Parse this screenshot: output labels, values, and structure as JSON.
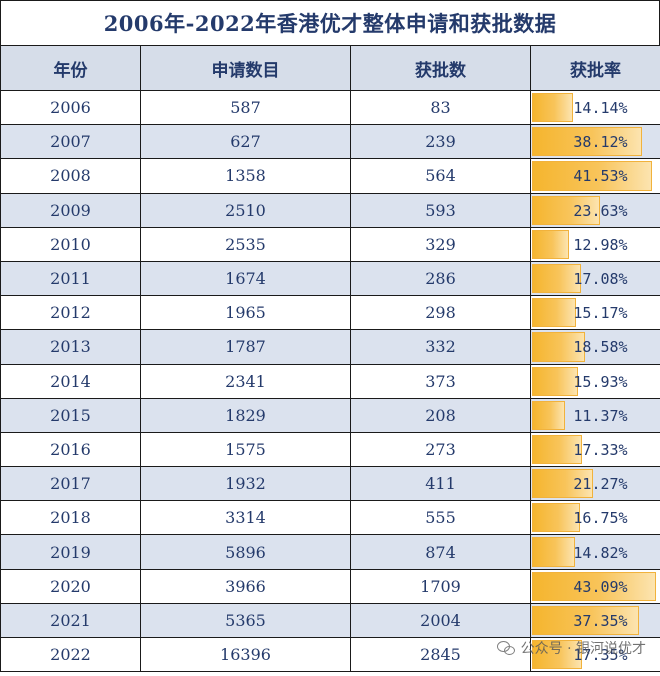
{
  "title": "2006年-2022年香港优才整体申请和获批数据",
  "columns": [
    "年份",
    "申请数目",
    "获批数",
    "获批率"
  ],
  "rows": [
    {
      "year": "2006",
      "applications": "587",
      "approved": "83",
      "rate": "14.14%",
      "rate_value": 14.14
    },
    {
      "year": "2007",
      "applications": "627",
      "approved": "239",
      "rate": "38.12%",
      "rate_value": 38.12
    },
    {
      "year": "2008",
      "applications": "1358",
      "approved": "564",
      "rate": "41.53%",
      "rate_value": 41.53
    },
    {
      "year": "2009",
      "applications": "2510",
      "approved": "593",
      "rate": "23.63%",
      "rate_value": 23.63
    },
    {
      "year": "2010",
      "applications": "2535",
      "approved": "329",
      "rate": "12.98%",
      "rate_value": 12.98
    },
    {
      "year": "2011",
      "applications": "1674",
      "approved": "286",
      "rate": "17.08%",
      "rate_value": 17.08
    },
    {
      "year": "2012",
      "applications": "1965",
      "approved": "298",
      "rate": "15.17%",
      "rate_value": 15.17
    },
    {
      "year": "2013",
      "applications": "1787",
      "approved": "332",
      "rate": "18.58%",
      "rate_value": 18.58
    },
    {
      "year": "2014",
      "applications": "2341",
      "approved": "373",
      "rate": "15.93%",
      "rate_value": 15.93
    },
    {
      "year": "2015",
      "applications": "1829",
      "approved": "208",
      "rate": "11.37%",
      "rate_value": 11.37
    },
    {
      "year": "2016",
      "applications": "1575",
      "approved": "273",
      "rate": "17.33%",
      "rate_value": 17.33
    },
    {
      "year": "2017",
      "applications": "1932",
      "approved": "411",
      "rate": "21.27%",
      "rate_value": 21.27
    },
    {
      "year": "2018",
      "applications": "3314",
      "approved": "555",
      "rate": "16.75%",
      "rate_value": 16.75
    },
    {
      "year": "2019",
      "applications": "5896",
      "approved": "874",
      "rate": "14.82%",
      "rate_value": 14.82
    },
    {
      "year": "2020",
      "applications": "3966",
      "approved": "1709",
      "rate": "43.09%",
      "rate_value": 43.09
    },
    {
      "year": "2021",
      "applications": "5365",
      "approved": "2004",
      "rate": "37.35%",
      "rate_value": 37.35
    },
    {
      "year": "2022",
      "applications": "16396",
      "approved": "2845",
      "rate": "17.35%",
      "rate_value": 17.35
    }
  ],
  "rate_bar_max": 43.09,
  "colors": {
    "header_bg": "#d6dde9",
    "alt_row_bg": "#dbe2ee",
    "text": "#243a6b",
    "bar": "#f5b52e"
  },
  "watermark": {
    "icon": "wechat-icon",
    "text": "公众号 · 银河说优才"
  }
}
